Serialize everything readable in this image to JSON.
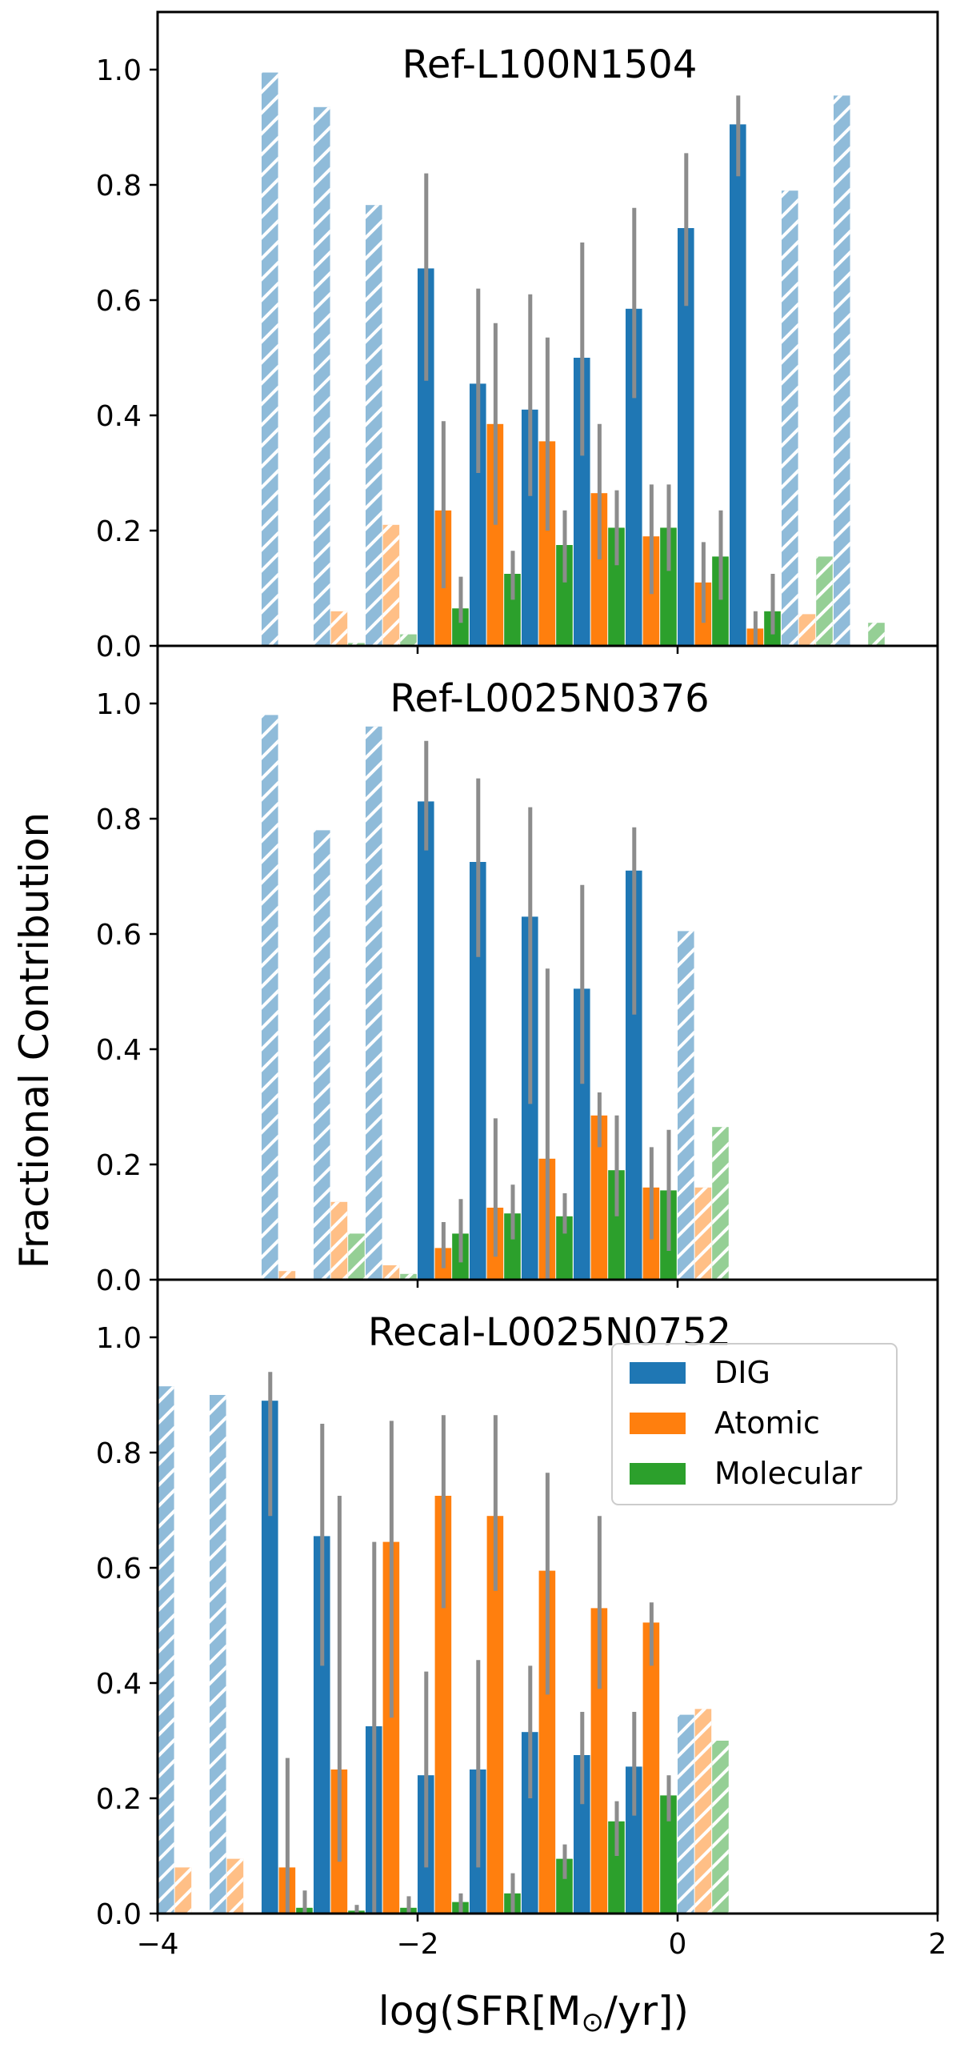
{
  "chart_data": {
    "type": "bar",
    "xlabel": "log(SFR[M",
    "xlabel_sub": "⊙",
    "xlabel_end": "/yr])",
    "ylabel": "Fractional Contribution",
    "xlim": [
      -4,
      2
    ],
    "ylim": [
      0,
      1.1
    ],
    "xticks": [
      -4,
      -2,
      0,
      2
    ],
    "xtick_labels": [
      "−4",
      "−2",
      "0",
      "2"
    ],
    "yticks": [
      0.0,
      0.2,
      0.4,
      0.6,
      0.8,
      1.0
    ],
    "ytick_labels": [
      "0.0",
      "0.2",
      "0.4",
      "0.6",
      "0.8",
      "1.0"
    ],
    "colors": {
      "DIG": "#1f77b4",
      "Atomic": "#ff7f0e",
      "Molecular": "#2ca02c",
      "errorbar": "#8c8c8c"
    },
    "legend": {
      "location": "upper-right of bottom panel",
      "entries": [
        "DIG",
        "Atomic",
        "Molecular"
      ]
    },
    "panels": [
      {
        "title": "Ref-L100N1504",
        "series": [
          {
            "name": "DIG",
            "bars": [
              {
                "x": -3.2,
                "v": 0.995,
                "hatched": true
              },
              {
                "x": -2.8,
                "v": 0.935,
                "hatched": true
              },
              {
                "x": -2.4,
                "v": 0.765,
                "hatched": true
              },
              {
                "x": -2.0,
                "v": 0.655,
                "lo": 0.46,
                "hi": 0.82
              },
              {
                "x": -1.6,
                "v": 0.455,
                "lo": 0.3,
                "hi": 0.62
              },
              {
                "x": -1.2,
                "v": 0.41,
                "lo": 0.26,
                "hi": 0.61
              },
              {
                "x": -0.8,
                "v": 0.5,
                "lo": 0.33,
                "hi": 0.7
              },
              {
                "x": -0.4,
                "v": 0.585,
                "lo": 0.43,
                "hi": 0.76
              },
              {
                "x": 0.0,
                "v": 0.725,
                "lo": 0.59,
                "hi": 0.855
              },
              {
                "x": 0.4,
                "v": 0.905,
                "lo": 0.815,
                "hi": 0.955
              },
              {
                "x": 0.8,
                "v": 0.79,
                "hatched": true
              },
              {
                "x": 1.2,
                "v": 0.955,
                "hatched": true
              }
            ]
          },
          {
            "name": "Atomic",
            "bars": [
              {
                "x": -2.8,
                "v": 0.06,
                "hatched": true
              },
              {
                "x": -2.4,
                "v": 0.21,
                "hatched": true
              },
              {
                "x": -2.0,
                "v": 0.235,
                "lo": 0.1,
                "hi": 0.39
              },
              {
                "x": -1.6,
                "v": 0.385,
                "lo": 0.21,
                "hi": 0.56
              },
              {
                "x": -1.2,
                "v": 0.355,
                "lo": 0.2,
                "hi": 0.535
              },
              {
                "x": -0.8,
                "v": 0.265,
                "lo": 0.15,
                "hi": 0.385
              },
              {
                "x": -0.4,
                "v": 0.19,
                "lo": 0.09,
                "hi": 0.28
              },
              {
                "x": 0.0,
                "v": 0.11,
                "lo": 0.04,
                "hi": 0.18
              },
              {
                "x": 0.4,
                "v": 0.03,
                "lo": 0.0,
                "hi": 0.06
              },
              {
                "x": 0.8,
                "v": 0.055,
                "hatched": true
              }
            ]
          },
          {
            "name": "Molecular",
            "bars": [
              {
                "x": -2.8,
                "v": 0.005,
                "hatched": true
              },
              {
                "x": -2.4,
                "v": 0.02,
                "hatched": true
              },
              {
                "x": -2.0,
                "v": 0.065,
                "lo": 0.04,
                "hi": 0.12
              },
              {
                "x": -1.6,
                "v": 0.125,
                "lo": 0.08,
                "hi": 0.165
              },
              {
                "x": -1.2,
                "v": 0.175,
                "lo": 0.11,
                "hi": 0.235
              },
              {
                "x": -0.8,
                "v": 0.205,
                "lo": 0.14,
                "hi": 0.27
              },
              {
                "x": -0.4,
                "v": 0.205,
                "lo": 0.13,
                "hi": 0.28
              },
              {
                "x": 0.0,
                "v": 0.155,
                "lo": 0.08,
                "hi": 0.235
              },
              {
                "x": 0.4,
                "v": 0.06,
                "lo": 0.02,
                "hi": 0.125
              },
              {
                "x": 0.8,
                "v": 0.155,
                "hatched": true
              },
              {
                "x": 1.2,
                "v": 0.04,
                "hatched": true
              }
            ]
          }
        ]
      },
      {
        "title": "Ref-L0025N0376",
        "series": [
          {
            "name": "DIG",
            "bars": [
              {
                "x": -3.2,
                "v": 0.98,
                "hatched": true
              },
              {
                "x": -2.8,
                "v": 0.78,
                "hatched": true
              },
              {
                "x": -2.4,
                "v": 0.96,
                "hatched": true
              },
              {
                "x": -2.0,
                "v": 0.83,
                "lo": 0.745,
                "hi": 0.935
              },
              {
                "x": -1.6,
                "v": 0.725,
                "lo": 0.56,
                "hi": 0.87
              },
              {
                "x": -1.2,
                "v": 0.63,
                "lo": 0.305,
                "hi": 0.82
              },
              {
                "x": -0.8,
                "v": 0.505,
                "lo": 0.34,
                "hi": 0.685
              },
              {
                "x": -0.4,
                "v": 0.71,
                "lo": 0.46,
                "hi": 0.785
              },
              {
                "x": 0.0,
                "v": 0.605,
                "hatched": true
              }
            ]
          },
          {
            "name": "Atomic",
            "bars": [
              {
                "x": -3.2,
                "v": 0.015,
                "hatched": true
              },
              {
                "x": -2.8,
                "v": 0.135,
                "hatched": true
              },
              {
                "x": -2.4,
                "v": 0.025,
                "hatched": true
              },
              {
                "x": -2.0,
                "v": 0.055,
                "lo": 0.02,
                "hi": 0.1
              },
              {
                "x": -1.6,
                "v": 0.125,
                "lo": 0.04,
                "hi": 0.28
              },
              {
                "x": -1.2,
                "v": 0.21,
                "lo": 0.0,
                "hi": 0.54
              },
              {
                "x": -0.8,
                "v": 0.285,
                "lo": 0.23,
                "hi": 0.325
              },
              {
                "x": -0.4,
                "v": 0.16,
                "lo": 0.07,
                "hi": 0.23
              },
              {
                "x": 0.0,
                "v": 0.16,
                "hatched": true
              }
            ]
          },
          {
            "name": "Molecular",
            "bars": [
              {
                "x": -2.8,
                "v": 0.08,
                "hatched": true
              },
              {
                "x": -2.4,
                "v": 0.01,
                "hatched": true
              },
              {
                "x": -2.0,
                "v": 0.08,
                "lo": 0.03,
                "hi": 0.14
              },
              {
                "x": -1.6,
                "v": 0.115,
                "lo": 0.07,
                "hi": 0.165
              },
              {
                "x": -1.2,
                "v": 0.11,
                "lo": 0.08,
                "hi": 0.15
              },
              {
                "x": -0.8,
                "v": 0.19,
                "lo": 0.11,
                "hi": 0.285
              },
              {
                "x": -0.4,
                "v": 0.155,
                "lo": 0.05,
                "hi": 0.26
              },
              {
                "x": 0.0,
                "v": 0.265,
                "hatched": true
              }
            ]
          }
        ]
      },
      {
        "title": "Recal-L0025N0752",
        "series": [
          {
            "name": "DIG",
            "bars": [
              {
                "x": -4.0,
                "v": 0.915,
                "hatched": true
              },
              {
                "x": -3.6,
                "v": 0.9,
                "hatched": true
              },
              {
                "x": -3.2,
                "v": 0.89,
                "lo": 0.69,
                "hi": 0.94
              },
              {
                "x": -2.8,
                "v": 0.655,
                "lo": 0.43,
                "hi": 0.85
              },
              {
                "x": -2.4,
                "v": 0.325,
                "lo": 0.0,
                "hi": 0.645
              },
              {
                "x": -2.0,
                "v": 0.24,
                "lo": 0.08,
                "hi": 0.42
              },
              {
                "x": -1.6,
                "v": 0.25,
                "lo": 0.08,
                "hi": 0.44
              },
              {
                "x": -1.2,
                "v": 0.315,
                "lo": 0.2,
                "hi": 0.43
              },
              {
                "x": -0.8,
                "v": 0.275,
                "lo": 0.19,
                "hi": 0.35
              },
              {
                "x": -0.4,
                "v": 0.255,
                "lo": 0.17,
                "hi": 0.35
              },
              {
                "x": 0.0,
                "v": 0.345,
                "hatched": true
              }
            ]
          },
          {
            "name": "Atomic",
            "bars": [
              {
                "x": -4.0,
                "v": 0.08,
                "hatched": true
              },
              {
                "x": -3.6,
                "v": 0.095,
                "hatched": true
              },
              {
                "x": -3.2,
                "v": 0.08,
                "lo": 0.0,
                "hi": 0.27
              },
              {
                "x": -2.8,
                "v": 0.25,
                "lo": 0.09,
                "hi": 0.725
              },
              {
                "x": -2.4,
                "v": 0.645,
                "lo": 0.34,
                "hi": 0.855
              },
              {
                "x": -2.0,
                "v": 0.725,
                "lo": 0.53,
                "hi": 0.865
              },
              {
                "x": -1.6,
                "v": 0.69,
                "lo": 0.56,
                "hi": 0.865
              },
              {
                "x": -1.2,
                "v": 0.595,
                "lo": 0.38,
                "hi": 0.765
              },
              {
                "x": -0.8,
                "v": 0.53,
                "lo": 0.39,
                "hi": 0.69
              },
              {
                "x": -0.4,
                "v": 0.505,
                "lo": 0.43,
                "hi": 0.54
              },
              {
                "x": 0.0,
                "v": 0.355,
                "hatched": true
              }
            ]
          },
          {
            "name": "Molecular",
            "bars": [
              {
                "x": -3.2,
                "v": 0.01,
                "lo": 0.0,
                "hi": 0.04
              },
              {
                "x": -2.8,
                "v": 0.005,
                "lo": 0.0,
                "hi": 0.015
              },
              {
                "x": -2.4,
                "v": 0.01,
                "lo": 0.0,
                "hi": 0.03
              },
              {
                "x": -2.0,
                "v": 0.02,
                "lo": 0.0,
                "hi": 0.035
              },
              {
                "x": -1.6,
                "v": 0.035,
                "lo": 0.0,
                "hi": 0.07
              },
              {
                "x": -1.2,
                "v": 0.095,
                "lo": 0.06,
                "hi": 0.12
              },
              {
                "x": -0.8,
                "v": 0.16,
                "lo": 0.1,
                "hi": 0.195
              },
              {
                "x": -0.4,
                "v": 0.205,
                "lo": 0.16,
                "hi": 0.24
              },
              {
                "x": 0.0,
                "v": 0.3,
                "hatched": true
              }
            ]
          }
        ]
      }
    ]
  }
}
